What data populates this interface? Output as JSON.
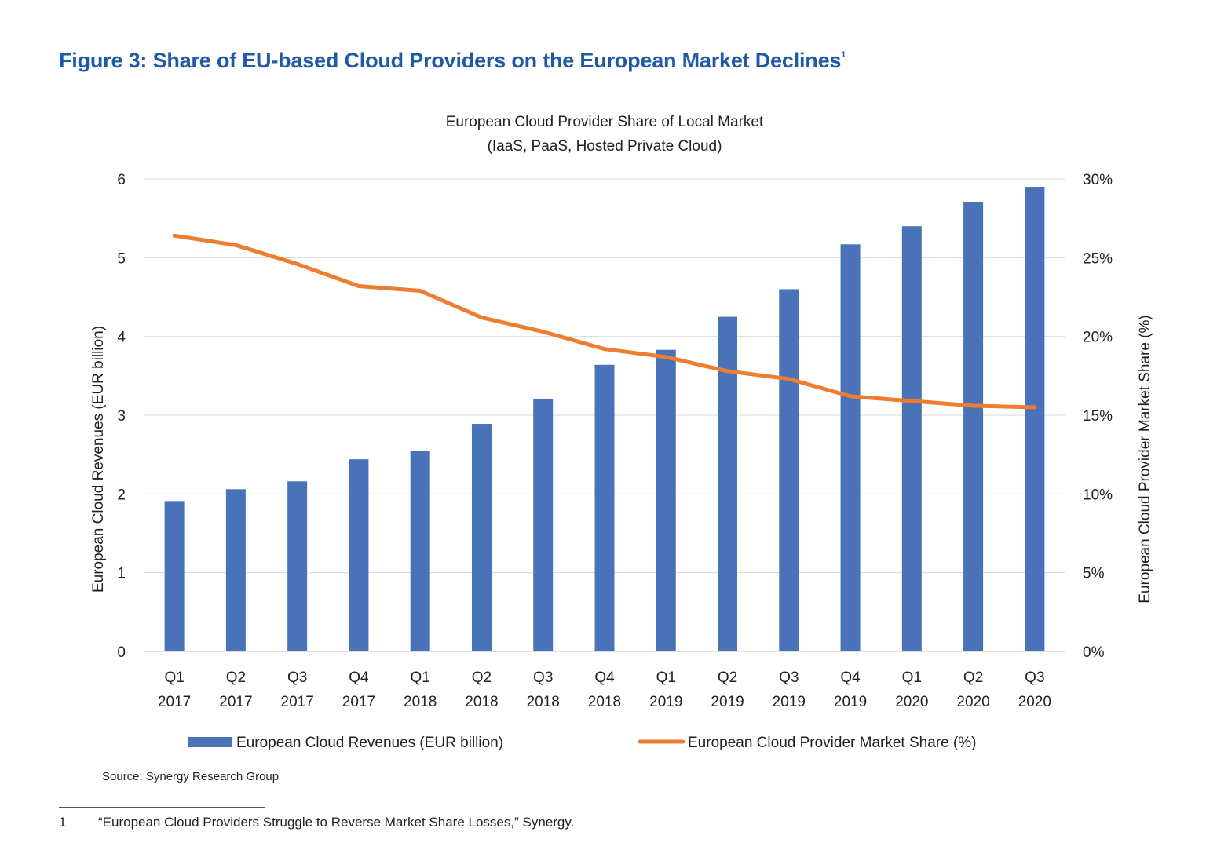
{
  "figure": {
    "title": "Figure 3: Share of EU-based Cloud Providers on the European Market Declines",
    "title_sup": "1",
    "source": "Source: Synergy Research Group",
    "footnote_number": "1",
    "footnote_text": "“European Cloud Providers Struggle to Reverse Market Share Losses,” Synergy."
  },
  "chart_data": {
    "type": "bar",
    "title": "European Cloud Provider Share of Local Market",
    "subtitle": "(IaaS, PaaS, Hosted Private Cloud)",
    "categories": [
      [
        "Q1",
        "2017"
      ],
      [
        "Q2",
        "2017"
      ],
      [
        "Q3",
        "2017"
      ],
      [
        "Q4",
        "2017"
      ],
      [
        "Q1",
        "2018"
      ],
      [
        "Q2",
        "2018"
      ],
      [
        "Q3",
        "2018"
      ],
      [
        "Q4",
        "2018"
      ],
      [
        "Q1",
        "2019"
      ],
      [
        "Q2",
        "2019"
      ],
      [
        "Q3",
        "2019"
      ],
      [
        "Q4",
        "2019"
      ],
      [
        "Q1",
        "2020"
      ],
      [
        "Q2",
        "2020"
      ],
      [
        "Q3",
        "2020"
      ]
    ],
    "series": [
      {
        "name": "European Cloud Revenues (EUR billion)",
        "type": "bar",
        "axis": "left",
        "color": "#4a72b8",
        "values": [
          1.91,
          2.06,
          2.16,
          2.44,
          2.55,
          2.89,
          3.21,
          3.64,
          3.83,
          4.25,
          4.6,
          5.17,
          5.4,
          5.71,
          5.9
        ]
      },
      {
        "name": "European Cloud Provider Market Share (%)",
        "type": "line",
        "axis": "right",
        "color": "#ee7d31",
        "values": [
          26.4,
          25.8,
          24.6,
          23.2,
          22.9,
          21.2,
          20.3,
          19.2,
          18.7,
          17.8,
          17.3,
          16.2,
          15.9,
          15.6,
          15.5
        ]
      }
    ],
    "y_left": {
      "label": "European Cloud Revenues (EUR billion)",
      "min": 0,
      "max": 6,
      "ticks": [
        "0",
        "1",
        "2",
        "3",
        "4",
        "5",
        "6"
      ]
    },
    "y_right": {
      "label": "European Cloud Provider Market Share (%)",
      "min": 0,
      "max": 30,
      "ticks": [
        "0%",
        "5%",
        "10%",
        "15%",
        "20%",
        "25%",
        "30%"
      ]
    },
    "grid": true,
    "legend": "bottom"
  }
}
